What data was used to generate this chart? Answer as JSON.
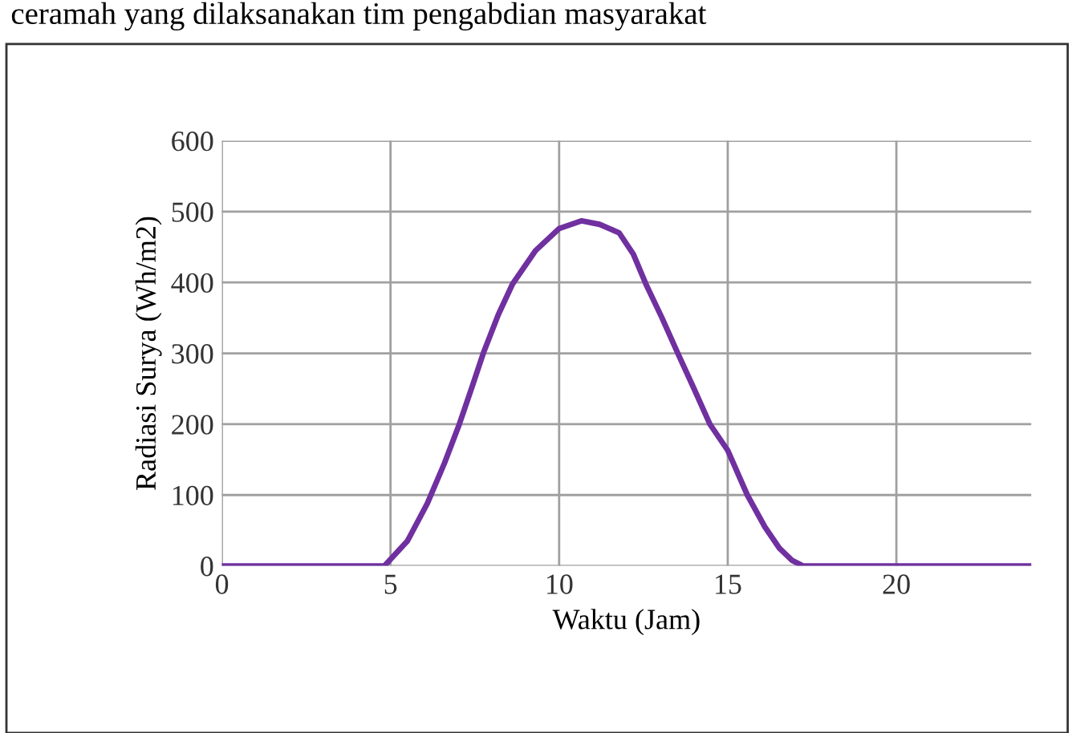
{
  "chart_data": {
    "type": "line",
    "xlabel": "Waktu (Jam)",
    "ylabel": "Radiasi Surya (Wh/m2)",
    "annotations": [
      "ceramah yang dilaksanakan tim pengabdian masyarakat"
    ],
    "series": [
      {
        "color": "#7030a0",
        "x": [
          0,
          2,
          4,
          4.82,
          5.5,
          6.09,
          6.6,
          7.04,
          7.4,
          7.75,
          8.2,
          8.62,
          9.3,
          10,
          10.67,
          11.2,
          11.78,
          12.2,
          12.57,
          13.05,
          13.52,
          14,
          14.47,
          15,
          15.58,
          16.1,
          16.53,
          16.9,
          17.23,
          18,
          20,
          22,
          24
        ],
        "values": [
          0,
          0,
          0,
          0,
          35,
          88,
          145,
          200,
          250,
          300,
          355,
          398,
          445,
          476,
          487,
          482,
          470,
          440,
          398,
          350,
          300,
          250,
          200,
          163,
          100,
          55,
          25,
          8,
          0,
          0,
          0,
          0,
          0
        ]
      }
    ],
    "xlim": [
      0,
      24
    ],
    "xticks": [
      0,
      5,
      10,
      15,
      20
    ],
    "ylim": [
      0,
      600
    ],
    "yticks": [
      0,
      100,
      200,
      300,
      400,
      500,
      600
    ],
    "grid": true,
    "marker": "none",
    "line_style": "solid"
  }
}
